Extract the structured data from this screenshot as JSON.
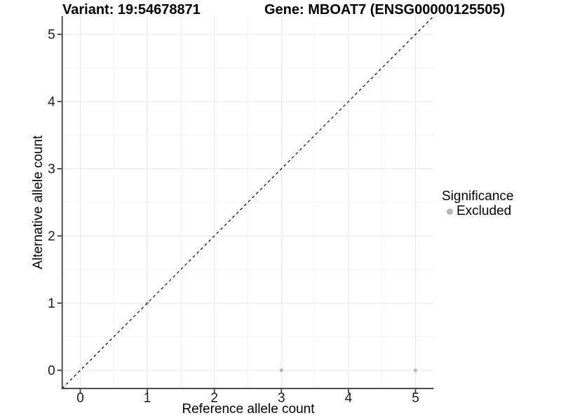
{
  "header": {
    "title_left": "Variant: 19:54678871",
    "title_right": "Gene: MBOAT7 (ENSG00000125505)"
  },
  "chart_data": {
    "type": "scatter",
    "title": "Variant: 19:54678871 — Gene: MBOAT7 (ENSG00000125505)",
    "xlabel": "Reference allele count",
    "ylabel": "Alternative allele count",
    "xlim": [
      -0.27,
      5.27
    ],
    "ylim": [
      -0.27,
      5.27
    ],
    "x_ticks": [
      0,
      1,
      2,
      3,
      4,
      5
    ],
    "y_ticks": [
      0,
      1,
      2,
      3,
      4,
      5
    ],
    "grid": "major and minor gridlines on white background",
    "series": [
      {
        "name": "Excluded",
        "color": "#b8b8b8",
        "points": [
          {
            "x": 1,
            "y": 1
          },
          {
            "x": 3,
            "y": 0
          },
          {
            "x": 5,
            "y": 0
          }
        ]
      }
    ],
    "reference_line": {
      "type": "identity y = x",
      "style": "dashed",
      "color": "#000000"
    },
    "legend": {
      "title": "Significance",
      "position": "right",
      "items": [
        {
          "label": "Excluded",
          "color": "#b8b8b8"
        }
      ]
    },
    "style": {
      "background": "#ffffff",
      "major_grid_color": "#e7e7e7",
      "minor_grid_color": "#f3f3f3",
      "axis_line_color": "#404040",
      "tick_label_color": "#1a1a1a",
      "point_color": "#b8b8b8"
    }
  }
}
